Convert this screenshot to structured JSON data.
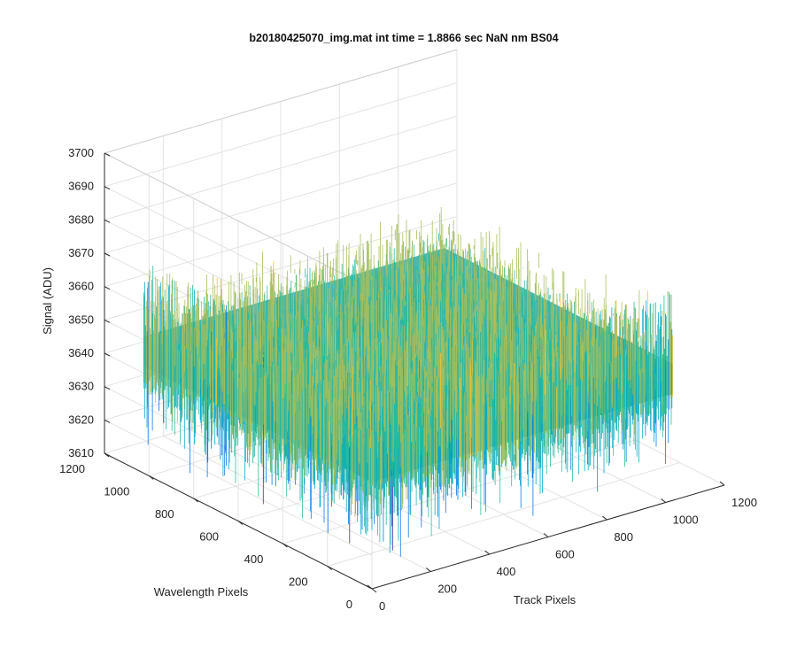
{
  "figure": {
    "title": "b20180425070_img.mat int time = 1.8866 sec  NaN nm BS04"
  },
  "chart_data": {
    "type": "surface",
    "title": "b20180425070_img.mat int time = 1.8866 sec  NaN nm BS04",
    "xlabel": "Track Pixels",
    "ylabel": "Wavelength Pixels",
    "zlabel": "Signal (ADU)",
    "xlim": [
      0,
      1200
    ],
    "ylim": [
      0,
      1200
    ],
    "zlim": [
      3610,
      3700
    ],
    "x_ticks": [
      "0",
      "200",
      "400",
      "600",
      "800",
      "1000",
      "1200"
    ],
    "y_ticks": [
      "0",
      "200",
      "400",
      "600",
      "800",
      "1000",
      "1200"
    ],
    "z_ticks": [
      "3610",
      "3620",
      "3630",
      "3640",
      "3650",
      "3660",
      "3670",
      "3680",
      "3690",
      "3700"
    ],
    "data_extent": {
      "x": [
        0,
        1024
      ],
      "y": [
        0,
        1024
      ]
    },
    "signal_mean": 3648,
    "signal_range_visible": [
      3612,
      3692
    ],
    "colormap": "parula",
    "colormap_colors": [
      "#3e26a8",
      "#0073e6",
      "#00a8c8",
      "#28b99c",
      "#a5be5c",
      "#f5c22c",
      "#f9fb0e"
    ],
    "grid": true,
    "box": true
  }
}
